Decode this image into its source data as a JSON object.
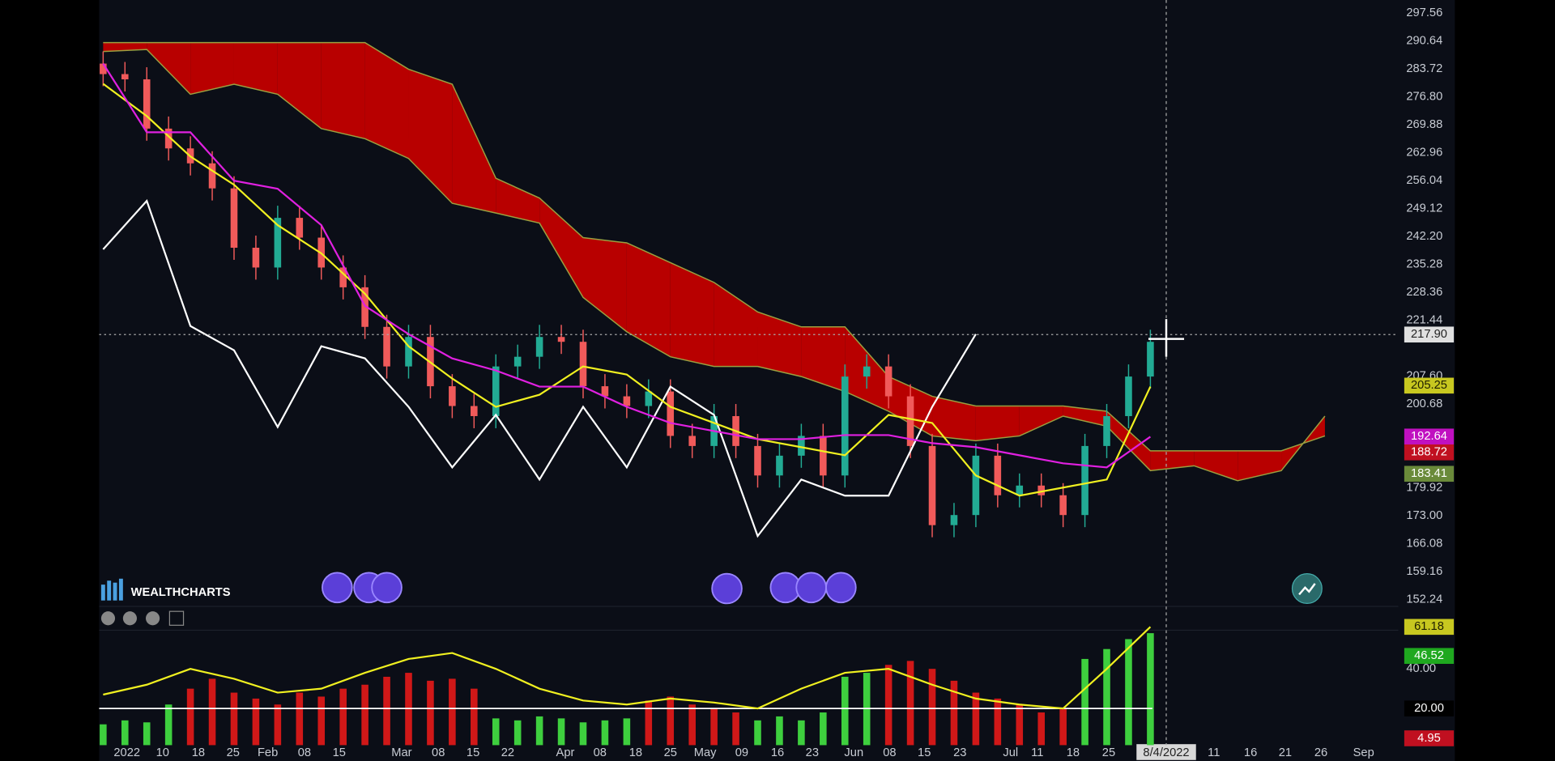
{
  "chart_data": [
    {
      "type": "candlestick",
      "ylim": [
        151.06,
        300.75
      ],
      "yticks": [
        297.56,
        290.64,
        283.72,
        {
          "value": 276.8,
          "label": "276.80"
        },
        269.88,
        262.96,
        256.04,
        249.12,
        {
          "value": 242.2,
          "label": "242.20"
        },
        235.28,
        228.36,
        221.44,
        {
          "value": 207.6,
          "label": "207.60"
        },
        200.68,
        179.92,
        {
          "value": 173,
          "label": "173.00"
        },
        166.08,
        159.16,
        152.24
      ],
      "x_labels": [
        "2022",
        "10",
        "18",
        "25",
        "Feb",
        "08",
        "15",
        "Mar",
        "08",
        "15",
        "22",
        "Apr",
        "08",
        "18",
        "25",
        "May",
        "09",
        "16",
        "23",
        "Jun",
        "08",
        "15",
        "23",
        "Jul",
        "11",
        "18",
        "25",
        "11",
        "16",
        "21",
        "26",
        "Sep"
      ],
      "candles": {
        "open": [
          285.0,
          282.4,
          281.1,
          268.9,
          264.0,
          260.3,
          254.1,
          239.4,
          234.5,
          246.8,
          241.9,
          234.5,
          229.6,
          219.8,
          210.0,
          217.3,
          205.1,
          200.2,
          197.7,
          210.0,
          212.4,
          217.3,
          216.1,
          205.1,
          202.6,
          200.2,
          203.8,
          192.8,
          190.3,
          197.7,
          190.3,
          183.0,
          187.9,
          192.8,
          183.0,
          207.5,
          210.0,
          202.6,
          190.3,
          170.7,
          173.2,
          187.9,
          178.1,
          180.5,
          178.1,
          173.2,
          190.3,
          197.7,
          207.5
        ],
        "high": [
          288.0,
          285.4,
          284.1,
          271.9,
          267.0,
          263.3,
          257.1,
          242.4,
          249.8,
          249.8,
          244.9,
          237.5,
          232.6,
          222.8,
          220.3,
          220.3,
          208.1,
          203.2,
          213.0,
          215.4,
          220.3,
          220.3,
          219.1,
          208.1,
          205.6,
          206.8,
          206.8,
          195.8,
          200.7,
          200.7,
          193.3,
          190.9,
          195.8,
          195.8,
          210.5,
          213.0,
          213.0,
          205.6,
          193.3,
          176.2,
          190.9,
          190.9,
          183.5,
          183.5,
          181.1,
          193.3,
          200.7,
          210.5,
          219.1
        ],
        "low": [
          279.4,
          278.1,
          265.9,
          261.0,
          257.3,
          251.1,
          236.4,
          231.5,
          231.5,
          238.9,
          231.5,
          226.6,
          216.8,
          207.0,
          207.0,
          202.1,
          197.2,
          194.7,
          194.7,
          207.0,
          209.4,
          213.1,
          202.1,
          199.6,
          197.2,
          197.2,
          189.8,
          187.3,
          187.3,
          187.3,
          180.0,
          180.0,
          184.9,
          180.0,
          180.0,
          204.5,
          199.6,
          187.3,
          167.7,
          167.7,
          170.2,
          175.1,
          175.1,
          175.1,
          170.2,
          170.2,
          187.3,
          194.7,
          204.5
        ],
        "close": [
          282.4,
          281.1,
          268.9,
          264.0,
          260.3,
          254.1,
          239.4,
          234.5,
          246.8,
          241.9,
          234.5,
          229.6,
          219.8,
          210.0,
          217.3,
          205.1,
          200.2,
          197.7,
          210.0,
          212.4,
          217.3,
          216.1,
          205.1,
          202.6,
          200.2,
          203.8,
          192.8,
          190.3,
          197.7,
          190.3,
          183.0,
          187.9,
          192.8,
          183.0,
          207.5,
          210.0,
          202.6,
          190.3,
          170.7,
          173.2,
          187.9,
          178.1,
          180.5,
          178.1,
          173.2,
          190.3,
          197.7,
          207.5,
          216.1
        ],
        "up_color": "#22ab94",
        "down_color": "#f05a5a"
      },
      "series": [
        {
          "color": "#ffffff",
          "values": [
            239,
            251,
            220,
            214,
            195,
            215,
            212,
            200,
            185,
            198,
            182,
            200,
            185,
            205,
            198,
            168,
            182,
            178,
            178,
            200,
            218
          ]
        },
        {
          "color": "#f0f020",
          "values": [
            280,
            272,
            262,
            255,
            245,
            238,
            228,
            215,
            207,
            200,
            203,
            210,
            208,
            200,
            196,
            192,
            190,
            188,
            198,
            196,
            183,
            178,
            180,
            182,
            205
          ]
        },
        {
          "color": "#e020e0",
          "values": [
            285,
            268,
            268,
            256,
            254,
            245,
            225,
            218,
            212,
            209,
            205,
            205,
            200,
            196,
            194,
            192,
            192,
            193,
            193,
            191,
            190,
            188,
            186,
            185,
            192.6
          ]
        }
      ],
      "cloud": {
        "span_a": [
          288.0,
          288.5,
          277.4,
          279.9,
          277.4,
          268.9,
          266.4,
          261.5,
          250.4,
          248.0,
          245.5,
          227.1,
          218.6,
          212.4,
          210.0,
          210.0,
          207.5,
          203.8,
          198.9,
          192.8,
          191.6,
          192.8,
          197.7,
          195.2,
          184.2,
          185.4,
          181.7,
          184.2,
          197.7
        ],
        "span_b": [
          290.2,
          290.2,
          290.2,
          290.2,
          290.2,
          290.2,
          290.2,
          283.6,
          279.9,
          256.6,
          251.7,
          241.9,
          240.6,
          235.7,
          230.8,
          223.5,
          219.8,
          219.8,
          207.5,
          202.6,
          200.2,
          200.2,
          200.2,
          198.9,
          189.1,
          189.1,
          189.1,
          189.1,
          192.8
        ],
        "bear_color": "#b80000",
        "bull_color": "#16b016",
        "edge_color": "#9aa040"
      },
      "crosshair": {
        "value": 217.9,
        "label": "217.90",
        "date": "8/4/2022"
      },
      "price_badges": [
        {
          "value": 205.25,
          "label": "205.25",
          "color": "#c8c820",
          "text_color": "#202000"
        },
        {
          "value": 192.64,
          "label": "192.64",
          "color": "#c010c0",
          "text_color": "#ffffff"
        },
        {
          "value": 188.72,
          "label": "188.72",
          "color": "#c01020",
          "text_color": "#ffffff"
        },
        {
          "value": 183.41,
          "label": "183.41",
          "color": "#6a8a3a",
          "text_color": "#ffffff"
        }
      ]
    },
    {
      "type": "bar",
      "ylim": [
        1.5,
        71.5
      ],
      "yticks": [
        {
          "value": 40,
          "label": "40.00"
        }
      ],
      "values": [
        12,
        14,
        13,
        22,
        30,
        35,
        28,
        25,
        22,
        28,
        26,
        30,
        32,
        36,
        38,
        34,
        35,
        30,
        15,
        14,
        16,
        15,
        13,
        14,
        15,
        24,
        26,
        22,
        20,
        18,
        14,
        16,
        14,
        18,
        36,
        38,
        42,
        44,
        40,
        34,
        28,
        25,
        22,
        18,
        20,
        45,
        50,
        55,
        58
      ],
      "colors": [
        "#3ecf3e",
        "#3ecf3e",
        "#3ecf3e",
        "#3ecf3e",
        "#d01818",
        "#d01818",
        "#d01818",
        "#d01818",
        "#d01818",
        "#d01818",
        "#d01818",
        "#d01818",
        "#d01818",
        "#d01818",
        "#d01818",
        "#d01818",
        "#d01818",
        "#d01818",
        "#3ecf3e",
        "#3ecf3e",
        "#3ecf3e",
        "#3ecf3e",
        "#3ecf3e",
        "#3ecf3e",
        "#3ecf3e",
        "#d01818",
        "#d01818",
        "#d01818",
        "#d01818",
        "#d01818",
        "#3ecf3e",
        "#3ecf3e",
        "#3ecf3e",
        "#3ecf3e",
        "#3ecf3e",
        "#3ecf3e",
        "#d01818",
        "#d01818",
        "#d01818",
        "#d01818",
        "#d01818",
        "#d01818",
        "#d01818",
        "#d01818",
        "#d01818",
        "#3ecf3e",
        "#3ecf3e",
        "#3ecf3e",
        "#3ecf3e"
      ],
      "series": [
        {
          "color": "#f0f020",
          "values": [
            27,
            32,
            40,
            35,
            28,
            30,
            38,
            45,
            48,
            40,
            30,
            24,
            22,
            25,
            23,
            20,
            30,
            38,
            40,
            32,
            25,
            22,
            20,
            40,
            61.2
          ]
        }
      ],
      "level": {
        "value": 20,
        "label": "20.00"
      },
      "badges": [
        {
          "value": 61.18,
          "label": "61.18",
          "color": "#c8c820",
          "text_color": "#202000"
        },
        {
          "value": 46.52,
          "label": "46.52",
          "color": "#1fa81f",
          "text_color": "#ffffff"
        },
        {
          "value": 4.95,
          "label": "4.95",
          "color": "#c01020",
          "text_color": "#ffffff"
        }
      ]
    }
  ],
  "logo": "WEALTHCHARTS"
}
